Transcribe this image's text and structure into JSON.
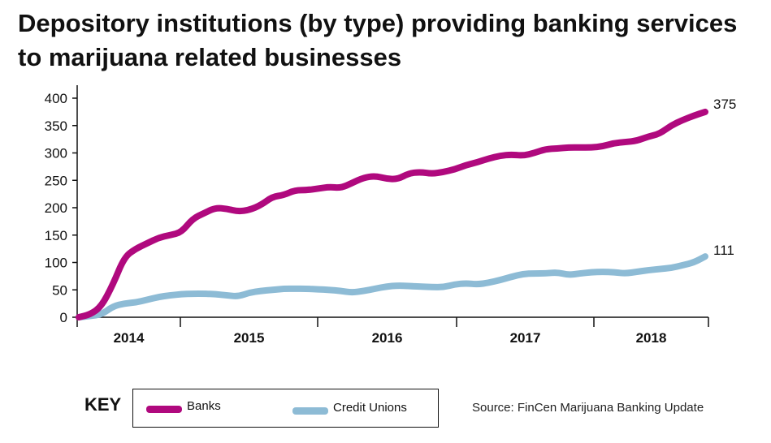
{
  "chart_data": {
    "type": "line",
    "title": "Depository institutions (by type) providing banking services to marijuana related businesses",
    "xlabel": "",
    "ylabel": "",
    "ylim": [
      0,
      400
    ],
    "yticks": [
      0,
      50,
      100,
      150,
      200,
      250,
      300,
      350,
      400
    ],
    "x_tick_labels": [
      "2014",
      "2015",
      "2016",
      "2017",
      "2018"
    ],
    "x_unit": "months since Feb 2014",
    "x_range": [
      0,
      58
    ],
    "grid": false,
    "legend_position": "bottom",
    "series": [
      {
        "name": "Banks",
        "color": "#B0097E",
        "end_label": "375",
        "points": [
          [
            0,
            0
          ],
          [
            1,
            5
          ],
          [
            2,
            20
          ],
          [
            3,
            60
          ],
          [
            4,
            110
          ],
          [
            5,
            125
          ],
          [
            6,
            135
          ],
          [
            7,
            145
          ],
          [
            8,
            150
          ],
          [
            9,
            155
          ],
          [
            10,
            180
          ],
          [
            11,
            190
          ],
          [
            12,
            200
          ],
          [
            13,
            198
          ],
          [
            14,
            193
          ],
          [
            15,
            196
          ],
          [
            16,
            205
          ],
          [
            17,
            220
          ],
          [
            18,
            223
          ],
          [
            19,
            232
          ],
          [
            20,
            232
          ],
          [
            21,
            235
          ],
          [
            22,
            238
          ],
          [
            23,
            236
          ],
          [
            24,
            245
          ],
          [
            25,
            255
          ],
          [
            26,
            258
          ],
          [
            27,
            253
          ],
          [
            28,
            252
          ],
          [
            29,
            263
          ],
          [
            30,
            265
          ],
          [
            31,
            262
          ],
          [
            32,
            265
          ],
          [
            33,
            270
          ],
          [
            34,
            278
          ],
          [
            35,
            283
          ],
          [
            36,
            290
          ],
          [
            37,
            295
          ],
          [
            38,
            297
          ],
          [
            39,
            295
          ],
          [
            40,
            300
          ],
          [
            41,
            307
          ],
          [
            42,
            308
          ],
          [
            43,
            310
          ],
          [
            44,
            310
          ],
          [
            45,
            310
          ],
          [
            46,
            312
          ],
          [
            47,
            318
          ],
          [
            48,
            320
          ],
          [
            49,
            322
          ],
          [
            50,
            330
          ],
          [
            51,
            335
          ],
          [
            52,
            350
          ],
          [
            53,
            360
          ],
          [
            54,
            368
          ],
          [
            55,
            375
          ]
        ]
      },
      {
        "name": "Credit Unions",
        "color": "#8DBBD5",
        "end_label": "111",
        "points": [
          [
            0,
            0
          ],
          [
            1,
            2
          ],
          [
            2,
            5
          ],
          [
            3,
            20
          ],
          [
            4,
            25
          ],
          [
            5,
            27
          ],
          [
            6,
            32
          ],
          [
            7,
            37
          ],
          [
            8,
            40
          ],
          [
            9,
            42
          ],
          [
            10,
            43
          ],
          [
            11,
            43
          ],
          [
            12,
            42
          ],
          [
            13,
            40
          ],
          [
            14,
            38
          ],
          [
            15,
            45
          ],
          [
            16,
            48
          ],
          [
            17,
            50
          ],
          [
            18,
            52
          ],
          [
            19,
            52
          ],
          [
            20,
            52
          ],
          [
            21,
            51
          ],
          [
            22,
            50
          ],
          [
            23,
            48
          ],
          [
            24,
            45
          ],
          [
            25,
            48
          ],
          [
            26,
            52
          ],
          [
            27,
            56
          ],
          [
            28,
            58
          ],
          [
            29,
            57
          ],
          [
            30,
            56
          ],
          [
            31,
            55
          ],
          [
            32,
            55
          ],
          [
            33,
            60
          ],
          [
            34,
            62
          ],
          [
            35,
            60
          ],
          [
            36,
            63
          ],
          [
            37,
            68
          ],
          [
            38,
            74
          ],
          [
            39,
            79
          ],
          [
            40,
            80
          ],
          [
            41,
            80
          ],
          [
            42,
            82
          ],
          [
            43,
            77
          ],
          [
            44,
            80
          ],
          [
            45,
            82
          ],
          [
            46,
            83
          ],
          [
            47,
            82
          ],
          [
            48,
            80
          ],
          [
            49,
            83
          ],
          [
            50,
            86
          ],
          [
            51,
            88
          ],
          [
            52,
            90
          ],
          [
            53,
            95
          ],
          [
            54,
            100
          ],
          [
            55,
            111
          ]
        ]
      }
    ]
  },
  "key": {
    "label": "KEY",
    "items": [
      {
        "name": "Banks",
        "color": "#B0097E"
      },
      {
        "name": "Credit Unions",
        "color": "#8DBBD5"
      }
    ]
  },
  "source": "Source: FinCen Marijuana Banking Update"
}
